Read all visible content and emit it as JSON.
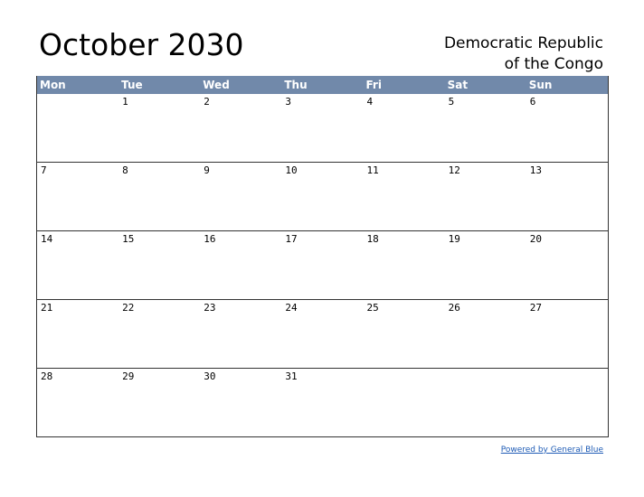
{
  "header": {
    "title": "October 2030",
    "country_lines": [
      "Democratic Republic",
      "of the Congo"
    ]
  },
  "weekdays": [
    "Mon",
    "Tue",
    "Wed",
    "Thu",
    "Fri",
    "Sat",
    "Sun"
  ],
  "weeks": [
    [
      null,
      1,
      2,
      3,
      4,
      5,
      6
    ],
    [
      7,
      8,
      9,
      10,
      11,
      12,
      13
    ],
    [
      14,
      15,
      16,
      17,
      18,
      19,
      20
    ],
    [
      21,
      22,
      23,
      24,
      25,
      26,
      27
    ],
    [
      28,
      29,
      30,
      31,
      null,
      null,
      null
    ]
  ],
  "footer": {
    "link": "Powered by General Blue"
  }
}
